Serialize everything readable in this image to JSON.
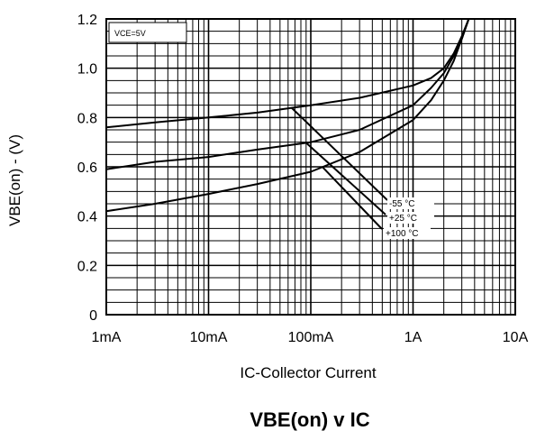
{
  "chart_data": {
    "type": "line",
    "title": "VBE(on) v IC",
    "xlabel": "IC-Collector Current",
    "ylabel": "VBE(on) - (V)",
    "condition": "VCE=5V",
    "x_scale": "log",
    "xlim": [
      0.001,
      10
    ],
    "ylim": [
      0,
      1.2
    ],
    "x_tick_labels": [
      "1mA",
      "10mA",
      "100mA",
      "1A",
      "10A"
    ],
    "x_tick_values": [
      0.001,
      0.01,
      0.1,
      1,
      10
    ],
    "y_tick_labels": [
      "0",
      "0.2",
      "0.4",
      "0.6",
      "0.8",
      "1.0",
      "1.2"
    ],
    "y_tick_values": [
      0,
      0.2,
      0.4,
      0.6,
      0.8,
      1.0,
      1.2
    ],
    "grid": true,
    "legend_position": "lower-right",
    "series": [
      {
        "name": "-55 °C",
        "x": [
          0.001,
          0.003,
          0.01,
          0.03,
          0.1,
          0.3,
          1,
          1.5,
          2,
          2.5,
          3,
          3.5
        ],
        "y": [
          0.76,
          0.78,
          0.8,
          0.82,
          0.85,
          0.88,
          0.93,
          0.96,
          1.0,
          1.06,
          1.13,
          1.2
        ]
      },
      {
        "name": "+25 °C",
        "x": [
          0.001,
          0.003,
          0.01,
          0.03,
          0.1,
          0.3,
          1,
          1.5,
          2,
          2.5,
          3,
          3.5
        ],
        "y": [
          0.59,
          0.62,
          0.64,
          0.67,
          0.7,
          0.75,
          0.85,
          0.92,
          0.98,
          1.05,
          1.12,
          1.2
        ]
      },
      {
        "name": "+100 °C",
        "x": [
          0.001,
          0.003,
          0.01,
          0.03,
          0.1,
          0.3,
          1,
          1.5,
          2,
          2.5,
          3,
          3.5
        ],
        "y": [
          0.42,
          0.45,
          0.49,
          0.53,
          0.58,
          0.66,
          0.79,
          0.87,
          0.95,
          1.03,
          1.12,
          1.2
        ]
      }
    ]
  }
}
